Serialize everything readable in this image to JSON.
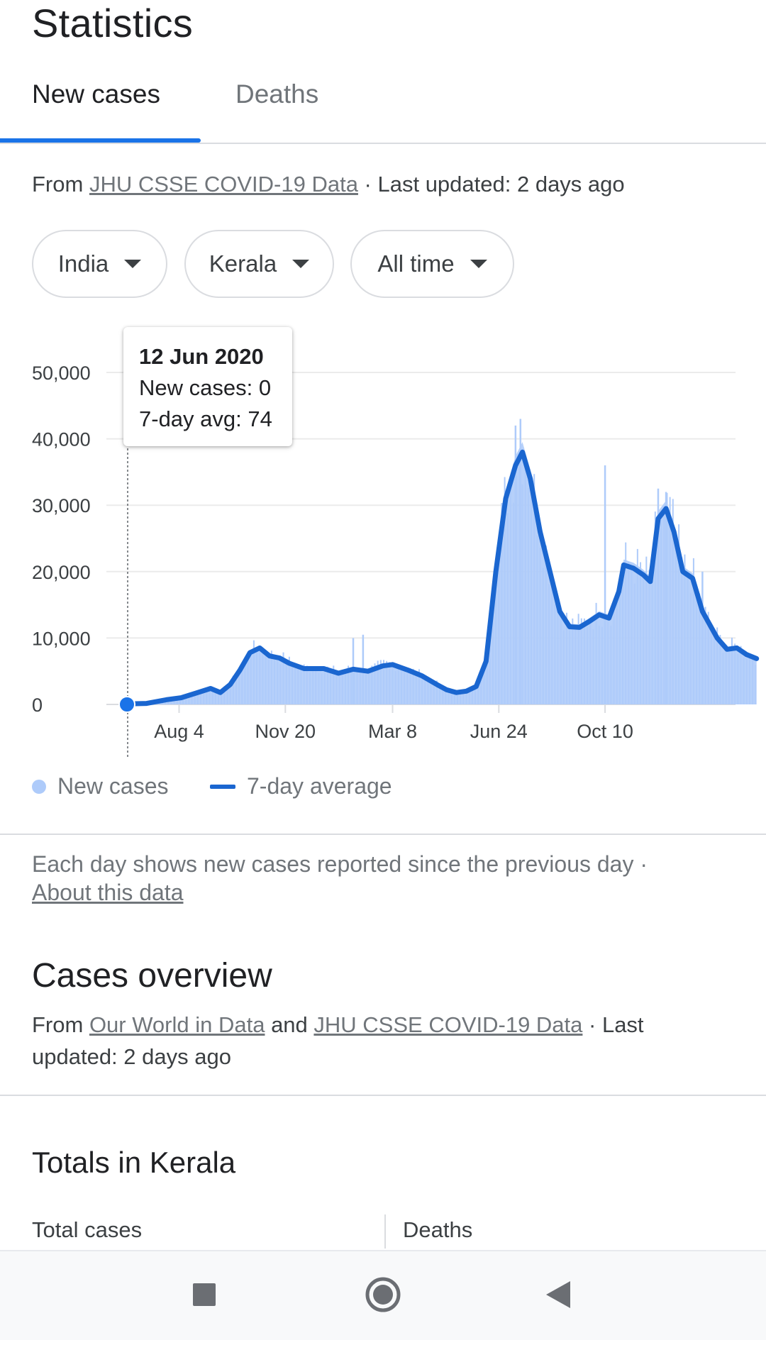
{
  "header": {
    "title": "Statistics"
  },
  "tabs": [
    {
      "label": "New cases",
      "active": true
    },
    {
      "label": "Deaths",
      "active": false
    }
  ],
  "source": {
    "prefix": "From ",
    "link": "JHU CSSE COVID-19 Data",
    "suffix": " · Last updated: 2 days ago"
  },
  "filters": {
    "country": "India",
    "region": "Kerala",
    "range": "All time"
  },
  "tooltip": {
    "date": "12 Jun 2020",
    "new_cases": "New cases: 0",
    "avg": "7-day avg: 74"
  },
  "legend": {
    "bars": "New cases",
    "line": "7-day average"
  },
  "note": {
    "text": "Each day shows new cases reported since the previous day",
    "sep": " · ",
    "link": "About this data"
  },
  "overview": {
    "title": "Cases overview",
    "from": "From ",
    "link1": "Our World in Data",
    "and": " and ",
    "link2": "JHU CSSE COVID-19 Data",
    "suffix": " · Last updated: 2 days ago"
  },
  "totals": {
    "title": "Totals in Kerala",
    "col1": "Total cases",
    "col2": "Deaths"
  },
  "colors": {
    "accent": "#1a73e8",
    "line": "#1a66d0",
    "bars": "#aecbfa"
  },
  "icons": {
    "recents": "square-icon",
    "home": "circle-home-icon",
    "back": "triangle-back-icon"
  },
  "chart_data": {
    "type": "area",
    "yticks": [
      "50,000",
      "40,000",
      "30,000",
      "20,000",
      "10,000",
      "0"
    ],
    "ylim": [
      0,
      50000
    ],
    "xticks": [
      "Aug 4",
      "Nov 20",
      "Mar 8",
      "Jun 24",
      "Oct 10"
    ],
    "x_days": [
      0,
      53,
      161,
      270,
      378,
      486,
      515
    ],
    "series": [
      {
        "name": "7-day average",
        "points": [
          [
            0,
            74
          ],
          [
            20,
            150
          ],
          [
            40,
            700
          ],
          [
            55,
            1000
          ],
          [
            70,
            1700
          ],
          [
            85,
            2400
          ],
          [
            95,
            1800
          ],
          [
            105,
            3000
          ],
          [
            115,
            5200
          ],
          [
            125,
            7800
          ],
          [
            135,
            8500
          ],
          [
            145,
            7300
          ],
          [
            155,
            7000
          ],
          [
            165,
            6200
          ],
          [
            180,
            5400
          ],
          [
            200,
            5400
          ],
          [
            215,
            4700
          ],
          [
            230,
            5300
          ],
          [
            245,
            5000
          ],
          [
            260,
            5800
          ],
          [
            270,
            6000
          ],
          [
            285,
            5200
          ],
          [
            300,
            4300
          ],
          [
            315,
            3000
          ],
          [
            325,
            2200
          ],
          [
            335,
            1800
          ],
          [
            345,
            2000
          ],
          [
            355,
            2700
          ],
          [
            365,
            6500
          ],
          [
            375,
            20000
          ],
          [
            385,
            31000
          ],
          [
            395,
            36000
          ],
          [
            402,
            38000
          ],
          [
            410,
            34000
          ],
          [
            420,
            26000
          ],
          [
            430,
            20000
          ],
          [
            440,
            14000
          ],
          [
            450,
            11700
          ],
          [
            460,
            11600
          ],
          [
            470,
            12500
          ],
          [
            480,
            13500
          ],
          [
            490,
            13000
          ],
          [
            500,
            17000
          ],
          [
            505,
            21000
          ],
          [
            515,
            20500
          ],
          [
            525,
            19500
          ],
          [
            532,
            18500
          ],
          [
            540,
            28000
          ],
          [
            548,
            29500
          ],
          [
            556,
            26000
          ],
          [
            565,
            20000
          ],
          [
            575,
            19000
          ],
          [
            585,
            14000
          ],
          [
            600,
            10000
          ],
          [
            610,
            8300
          ],
          [
            620,
            8500
          ],
          [
            630,
            7500
          ],
          [
            640,
            6900
          ]
        ]
      }
    ]
  }
}
